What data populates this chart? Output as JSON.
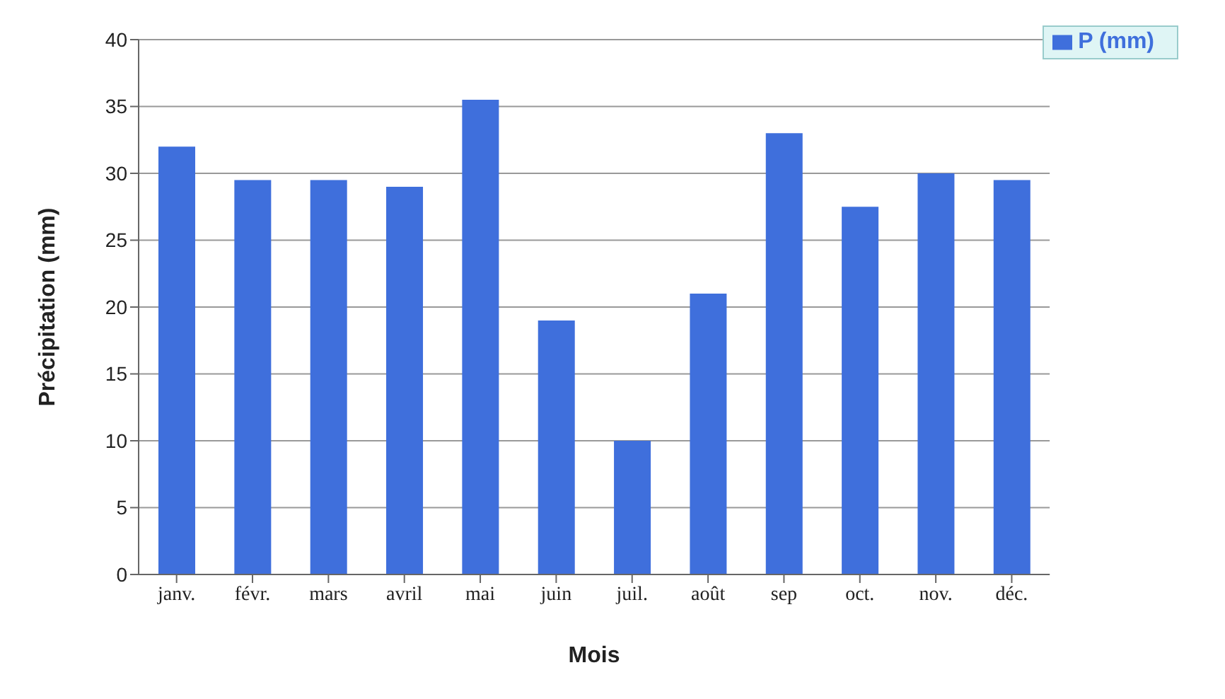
{
  "chart_data": {
    "type": "bar",
    "xlabel": "Mois",
    "ylabel": "Précipitation (mm)",
    "categories": [
      "janv.",
      "févr.",
      "mars",
      "avril",
      "mai",
      "juin",
      "juil.",
      "août",
      "sep",
      "oct.",
      "nov.",
      "déc."
    ],
    "series": [
      {
        "name": "P (mm)",
        "color": "#3f6fdc",
        "values": [
          32,
          29.5,
          29.5,
          29,
          35.5,
          19,
          10,
          21,
          33,
          27.5,
          30,
          29.5
        ]
      }
    ],
    "ylim": [
      0,
      40
    ],
    "yticks": [
      0,
      5,
      10,
      15,
      20,
      25,
      30,
      35,
      40
    ],
    "grid": "y",
    "legend": "top right"
  }
}
